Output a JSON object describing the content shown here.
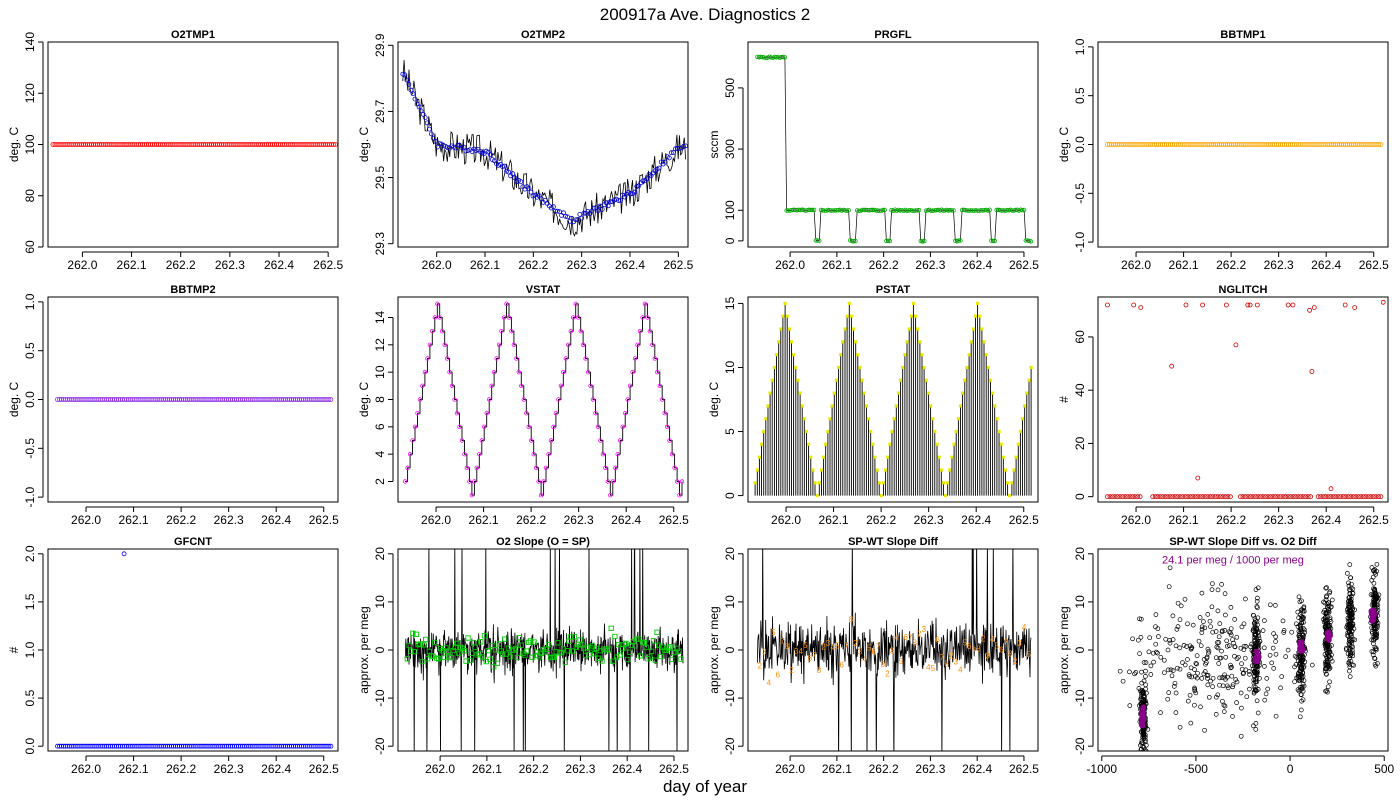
{
  "figure": {
    "title": "200917a   Ave. Diagnostics 2",
    "xlabel": "day of year"
  },
  "chart_data": [
    {
      "id": "o2tmp1",
      "type": "scatter",
      "title": "O2TMP1",
      "ylabel": "deg. C",
      "xlim": [
        261.93,
        262.52
      ],
      "ylim": [
        60,
        140
      ],
      "xticks": [
        262.0,
        262.1,
        262.2,
        262.3,
        262.4,
        262.5
      ],
      "xtick_labels": [
        "262.0",
        "262.1",
        "262.2",
        "262.3",
        "262.4",
        "262.5"
      ],
      "yticks": [
        60,
        80,
        100,
        120,
        140
      ],
      "ytick_labels": [
        "60",
        "80",
        "100",
        "120",
        "140"
      ],
      "color": "#ff0000",
      "series": [
        {
          "kind": "points",
          "generator": {
            "mode": "constant",
            "x0": 261.94,
            "x1": 262.515,
            "n": 140,
            "value": 100
          }
        }
      ]
    },
    {
      "id": "o2tmp2",
      "type": "line",
      "title": "O2TMP2",
      "ylabel": "deg. C",
      "xlim": [
        261.92,
        262.52
      ],
      "ylim": [
        29.29,
        29.91
      ],
      "xticks": [
        262.0,
        262.1,
        262.2,
        262.3,
        262.4,
        262.5
      ],
      "xtick_labels": [
        "262.0",
        "262.1",
        "262.2",
        "262.3",
        "262.4",
        "262.5"
      ],
      "yticks": [
        29.3,
        29.5,
        29.7,
        29.9
      ],
      "ytick_labels": [
        "29.3",
        "29.5",
        "29.7",
        "29.9"
      ],
      "color": "#0000cc",
      "series": [
        {
          "kind": "spikes",
          "generator": {
            "mode": "curve",
            "x0": 261.93,
            "x1": 262.515,
            "n": 230,
            "amp": 0.05,
            "seed": 3,
            "keys": [
              [
                261.93,
                29.82
              ],
              [
                262.0,
                29.6
              ],
              [
                262.1,
                29.58
              ],
              [
                262.2,
                29.45
              ],
              [
                262.28,
                29.37
              ],
              [
                262.4,
                29.45
              ],
              [
                262.5,
                29.59
              ]
            ]
          }
        },
        {
          "kind": "points",
          "generator": {
            "mode": "curve",
            "x0": 261.93,
            "x1": 262.515,
            "n": 140,
            "amp": 0.008,
            "seed": 4,
            "keys": [
              [
                261.93,
                29.82
              ],
              [
                262.0,
                29.6
              ],
              [
                262.1,
                29.58
              ],
              [
                262.2,
                29.45
              ],
              [
                262.28,
                29.37
              ],
              [
                262.4,
                29.45
              ],
              [
                262.5,
                29.59
              ]
            ]
          }
        }
      ]
    },
    {
      "id": "prgfl",
      "type": "line",
      "title": "PRGFL",
      "ylabel": "sccm",
      "xlim": [
        261.91,
        262.53
      ],
      "ylim": [
        -20,
        650
      ],
      "xticks": [
        262.0,
        262.1,
        262.2,
        262.3,
        262.4,
        262.5
      ],
      "xtick_labels": [
        "262.0",
        "262.1",
        "262.2",
        "262.3",
        "262.4",
        "262.5"
      ],
      "yticks": [
        0,
        100,
        300,
        500
      ],
      "ytick_labels": [
        "0",
        "100",
        "300",
        "500"
      ],
      "color": "#00aa00",
      "series": [
        {
          "kind": "segments",
          "generator": {
            "mode": "purge",
            "x0": 261.93,
            "x1": 262.515,
            "n": 160,
            "seed": 5,
            "high_until": 261.99,
            "high": 600,
            "low": 100,
            "dip": 0,
            "cycle": 0.075,
            "dip_frac": 0.16
          }
        }
      ]
    },
    {
      "id": "bbtmp1",
      "type": "scatter",
      "title": "BBTMP1",
      "ylabel": "deg. C",
      "xlim": [
        261.92,
        262.53
      ],
      "ylim": [
        -1.05,
        1.05
      ],
      "xticks": [
        262.0,
        262.1,
        262.2,
        262.3,
        262.4,
        262.5
      ],
      "xtick_labels": [
        "262.0",
        "262.1",
        "262.2",
        "262.3",
        "262.4",
        "262.5"
      ],
      "yticks": [
        -1.0,
        -0.5,
        0.0,
        0.5,
        1.0
      ],
      "ytick_labels": [
        "-1.0",
        "-0.5",
        "0.0",
        "0.5",
        "1.0"
      ],
      "color": "#ffa500",
      "series": [
        {
          "kind": "points",
          "generator": {
            "mode": "constant",
            "x0": 261.94,
            "x1": 262.515,
            "n": 140,
            "value": 0
          }
        }
      ]
    },
    {
      "id": "bbtmp2",
      "type": "scatter",
      "title": "BBTMP2",
      "ylabel": "deg. C",
      "xlim": [
        261.92,
        262.53
      ],
      "ylim": [
        -1.05,
        1.05
      ],
      "xticks": [
        262.0,
        262.1,
        262.2,
        262.3,
        262.4,
        262.5
      ],
      "xtick_labels": [
        "262.0",
        "262.1",
        "262.2",
        "262.3",
        "262.4",
        "262.5"
      ],
      "yticks": [
        -1.0,
        -0.5,
        0.0,
        0.5,
        1.0
      ],
      "ytick_labels": [
        "-1.0",
        "-0.5",
        "0.0",
        "0.5",
        "1.0"
      ],
      "color": "#8a2be2",
      "series": [
        {
          "kind": "points",
          "generator": {
            "mode": "constant",
            "x0": 261.94,
            "x1": 262.515,
            "n": 140,
            "value": 0
          }
        }
      ]
    },
    {
      "id": "vstat",
      "type": "line",
      "title": "VSTAT",
      "ylabel": "deg. C",
      "xlim": [
        261.92,
        262.53
      ],
      "ylim": [
        0.5,
        15.5
      ],
      "xticks": [
        262.0,
        262.1,
        262.2,
        262.3,
        262.4,
        262.5
      ],
      "xtick_labels": [
        "262.0",
        "262.1",
        "262.2",
        "262.3",
        "262.4",
        "262.5"
      ],
      "yticks": [
        2,
        4,
        6,
        8,
        10,
        12,
        14
      ],
      "ytick_labels": [
        "2",
        "4",
        "6",
        "8",
        "10",
        "12",
        "14"
      ],
      "color": "#ff00ff",
      "series": [
        {
          "kind": "staircase",
          "generator": {
            "mode": "triangle",
            "x0": 261.935,
            "x1": 262.52,
            "step": 0.0052,
            "lo": 1,
            "hi": 15,
            "start": 2,
            "dir": 1
          }
        }
      ]
    },
    {
      "id": "pstat",
      "type": "bar",
      "title": "PSTAT",
      "ylabel": "deg. C",
      "xlim": [
        261.92,
        262.53
      ],
      "ylim": [
        -0.5,
        15.5
      ],
      "xticks": [
        262.0,
        262.1,
        262.2,
        262.3,
        262.4,
        262.5
      ],
      "xtick_labels": [
        "262.0",
        "262.1",
        "262.2",
        "262.3",
        "262.4",
        "262.5"
      ],
      "yticks": [
        0,
        5,
        10,
        15
      ],
      "ytick_labels": [
        "0",
        "5",
        "10",
        "15"
      ],
      "color": "#e8e800",
      "series": [
        {
          "kind": "bars",
          "generator": {
            "mode": "triangle",
            "x0": 261.935,
            "x1": 262.52,
            "step": 0.0045,
            "lo": 0,
            "hi": 15,
            "start": 1,
            "dir": 1
          }
        }
      ]
    },
    {
      "id": "nglitch",
      "type": "scatter",
      "title": "NGLITCH",
      "ylabel": "#",
      "xlim": [
        261.92,
        262.53
      ],
      "ylim": [
        -2,
        75
      ],
      "xticks": [
        262.0,
        262.1,
        262.2,
        262.3,
        262.4,
        262.5
      ],
      "xtick_labels": [
        "262.0",
        "262.1",
        "262.2",
        "262.3",
        "262.4",
        "262.5"
      ],
      "yticks": [
        0,
        20,
        40,
        60
      ],
      "ytick_labels": [
        "0",
        "20",
        "40",
        "60"
      ],
      "color": "#cc0000",
      "series": [
        {
          "kind": "points",
          "generator": {
            "mode": "zeros",
            "x0": 261.94,
            "x1": 262.515,
            "n": 110,
            "gaps": [
              [
                262.01,
                262.03
              ],
              [
                262.2,
                262.215
              ],
              [
                262.37,
                262.38
              ]
            ]
          }
        },
        {
          "kind": "points",
          "x": [
            261.94,
            261.995,
            262.01,
            262.075,
            262.105,
            262.13,
            262.14,
            262.19,
            262.21,
            262.235,
            262.24,
            262.255,
            262.32,
            262.33,
            262.365,
            262.37,
            262.375,
            262.41,
            262.44,
            262.46,
            262.52
          ],
          "y": [
            72,
            72,
            71,
            49,
            72,
            7,
            72,
            72,
            57,
            72,
            72,
            72,
            72,
            72,
            70,
            47,
            71,
            3,
            72,
            71,
            73
          ]
        }
      ]
    },
    {
      "id": "gfcnt",
      "type": "scatter",
      "title": "GFCNT",
      "ylabel": "#",
      "xlim": [
        261.92,
        262.53
      ],
      "ylim": [
        -0.05,
        2.05
      ],
      "xticks": [
        262.0,
        262.1,
        262.2,
        262.3,
        262.4,
        262.5
      ],
      "xtick_labels": [
        "262.0",
        "262.1",
        "262.2",
        "262.3",
        "262.4",
        "262.5"
      ],
      "yticks": [
        0.0,
        0.5,
        1.0,
        1.5,
        2.0
      ],
      "ytick_labels": [
        "0.0",
        "0.5",
        "1.0",
        "1.5",
        "2.0"
      ],
      "color": "#0000ff",
      "series": [
        {
          "kind": "points",
          "generator": {
            "mode": "constant",
            "x0": 261.94,
            "x1": 262.515,
            "n": 140,
            "value": 0
          }
        },
        {
          "kind": "points",
          "x": [
            262.08
          ],
          "y": [
            2.0
          ]
        }
      ]
    },
    {
      "id": "o2slope",
      "type": "line",
      "title": "O2 Slope (O = SP)",
      "ylabel": "approx. per meg",
      "xlim": [
        261.91,
        262.53
      ],
      "ylim": [
        -21,
        21
      ],
      "xticks": [
        262.0,
        262.1,
        262.2,
        262.3,
        262.4,
        262.5
      ],
      "xtick_labels": [
        "262.0",
        "262.1",
        "262.2",
        "262.3",
        "262.4",
        "262.5"
      ],
      "yticks": [
        -20,
        -10,
        0,
        10,
        20
      ],
      "ytick_labels": [
        "-20",
        "-10",
        "0",
        "10",
        "20"
      ],
      "color": "#00cc00",
      "series": [
        {
          "kind": "noise",
          "generator": {
            "mode": "noise",
            "x0": 261.925,
            "x1": 262.52,
            "n": 700,
            "amp": 7,
            "spike": 0.04,
            "seed": 11
          }
        },
        {
          "kind": "squares",
          "generator": {
            "mode": "noise",
            "x0": 261.93,
            "x1": 262.515,
            "n": 150,
            "amp": 5,
            "spike": 0,
            "seed": 12
          }
        }
      ]
    },
    {
      "id": "spwt",
      "type": "line",
      "title": "SP-WT Slope Diff",
      "ylabel": "approx. per meg",
      "xlim": [
        261.91,
        262.53
      ],
      "ylim": [
        -21,
        21
      ],
      "xticks": [
        262.0,
        262.1,
        262.2,
        262.3,
        262.4,
        262.5
      ],
      "xtick_labels": [
        "262.0",
        "262.1",
        "262.2",
        "262.3",
        "262.4",
        "262.5"
      ],
      "yticks": [
        -20,
        -10,
        0,
        10,
        20
      ],
      "ytick_labels": [
        "-20",
        "-10",
        "0",
        "10",
        "20"
      ],
      "color": "#ff8c00",
      "series": [
        {
          "kind": "noise",
          "generator": {
            "mode": "noise",
            "x0": 261.93,
            "x1": 262.515,
            "n": 560,
            "amp": 9,
            "spike": 0.03,
            "seed": 21
          }
        },
        {
          "kind": "digits",
          "generator": {
            "mode": "noise",
            "x0": 261.935,
            "x1": 262.51,
            "n": 60,
            "amp": 8,
            "spike": 0,
            "seed": 22
          },
          "labels": [
            "2",
            "3",
            "4",
            "5",
            "6",
            "7",
            "8"
          ]
        }
      ]
    },
    {
      "id": "spwt_vs_o2",
      "type": "scatter",
      "title": "SP-WT Slope Diff vs. O2 Diff",
      "ylabel": "approx. per meg",
      "xlim": [
        -1020,
        520
      ],
      "ylim": [
        -21,
        21
      ],
      "xticks": [
        -1000,
        -500,
        0,
        500
      ],
      "xtick_labels": [
        "-1000",
        "-500",
        "0",
        "500"
      ],
      "yticks": [
        -20,
        -10,
        0,
        10,
        20
      ],
      "ytick_labels": [
        "-20",
        "-10",
        "0",
        "10",
        "20"
      ],
      "color": "#8b008b",
      "annotation": {
        "text": "24.1 per meg / 1000 per meg",
        "x": -680,
        "y": 18,
        "color": "#8b008b"
      },
      "series": [
        {
          "kind": "circles",
          "generator": {
            "mode": "clusters",
            "seed": 31,
            "spread": [
              {
                "x": -780,
                "sx": 12,
                "y": -14,
                "sy": 6,
                "n": 160
              },
              {
                "x": -180,
                "sx": 12,
                "y": -1,
                "sy": 7,
                "n": 140
              },
              {
                "x": 60,
                "sx": 14,
                "y": 0,
                "sy": 7,
                "n": 150
              },
              {
                "x": 200,
                "sx": 14,
                "y": 3,
                "sy": 7,
                "n": 150
              },
              {
                "x": 320,
                "sx": 12,
                "y": 5,
                "sy": 7,
                "n": 140
              },
              {
                "x": 450,
                "sx": 12,
                "y": 7,
                "sy": 7,
                "n": 140
              },
              {
                "x": -400,
                "sx": 300,
                "y": -2,
                "sy": 9,
                "n": 260
              }
            ]
          }
        },
        {
          "kind": "magenta-points",
          "generator": {
            "mode": "clusters",
            "seed": 32,
            "spread": [
              {
                "x": -780,
                "sx": 5,
                "y": -14,
                "sy": 1.2,
                "n": 18
              },
              {
                "x": -175,
                "sx": 6,
                "y": -1.5,
                "sy": 0.8,
                "n": 14
              },
              {
                "x": 60,
                "sx": 6,
                "y": 0.5,
                "sy": 0.8,
                "n": 14
              },
              {
                "x": 205,
                "sx": 6,
                "y": 3,
                "sy": 0.8,
                "n": 14
              },
              {
                "x": 440,
                "sx": 6,
                "y": 7,
                "sy": 0.8,
                "n": 14
              }
            ]
          }
        }
      ]
    }
  ]
}
